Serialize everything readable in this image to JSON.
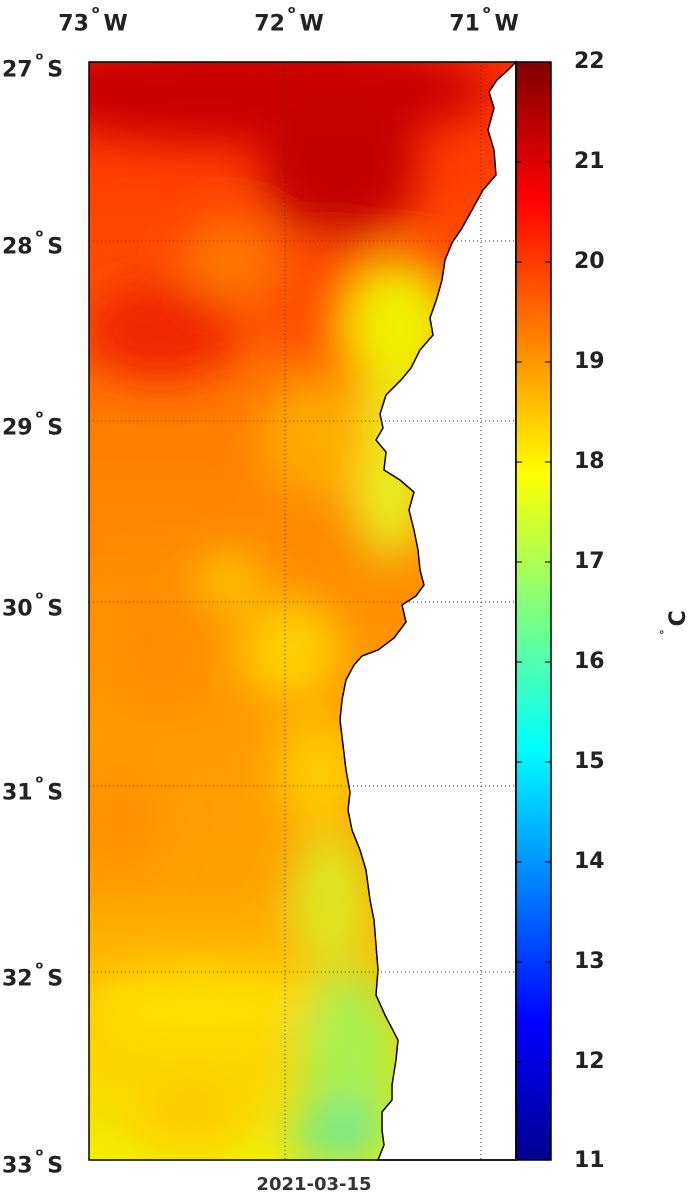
{
  "map": {
    "lon_labels": [
      {
        "deg": "73",
        "dir": "W",
        "lon": -73
      },
      {
        "deg": "72",
        "dir": "W",
        "lon": -72
      },
      {
        "deg": "71",
        "dir": "W",
        "lon": -71
      }
    ],
    "lat_labels": [
      {
        "deg": "27",
        "dir": "S",
        "lat": -27
      },
      {
        "deg": "28",
        "dir": "S",
        "lat": -28
      },
      {
        "deg": "29",
        "dir": "S",
        "lat": -29
      },
      {
        "deg": "30",
        "dir": "S",
        "lat": -30
      },
      {
        "deg": "31",
        "dir": "S",
        "lat": -31
      },
      {
        "deg": "32",
        "dir": "S",
        "lat": -32
      },
      {
        "deg": "33",
        "dir": "S",
        "lat": -33
      }
    ],
    "lon_range": [
      -73.0,
      -70.8
    ],
    "lat_range": [
      -33.0,
      -27.0
    ],
    "grid": "dotted",
    "date": "2021-03-15",
    "coast_color": "#000000",
    "land_color": "#ffffff"
  },
  "colorbar": {
    "ticks": [
      "22",
      "21",
      "20",
      "19",
      "18",
      "17",
      "16",
      "15",
      "14",
      "13",
      "12",
      "11"
    ],
    "min": 11,
    "max": 22,
    "colormap": "jet",
    "unit_symbol": "C",
    "unit_degree": "°"
  }
}
